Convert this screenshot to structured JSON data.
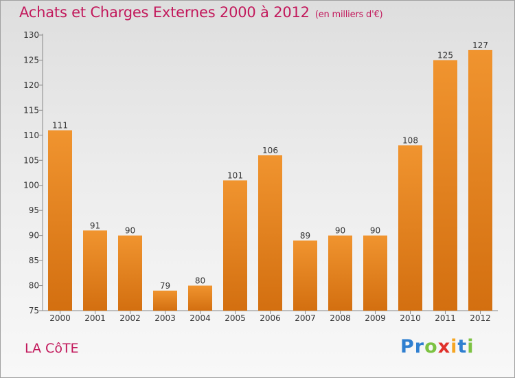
{
  "chart_data": {
    "type": "bar",
    "title": "Achats et Charges Externes 2000 à 2012",
    "subtitle": "(en milliers d'€)",
    "categories": [
      "2000",
      "2001",
      "2002",
      "2003",
      "2004",
      "2005",
      "2006",
      "2007",
      "2008",
      "2009",
      "2010",
      "2011",
      "2012"
    ],
    "values": [
      111,
      91,
      90,
      79,
      80,
      101,
      106,
      89,
      90,
      90,
      108,
      125,
      127
    ],
    "ylim": [
      75,
      130
    ],
    "yticks": [
      75,
      80,
      85,
      90,
      95,
      100,
      105,
      110,
      115,
      120,
      125,
      130
    ],
    "grid": false,
    "bar_color": "#f0942f",
    "bar_color_dark": "#d36f10"
  },
  "commune": "LA CôTE",
  "brand": {
    "letters": [
      "P",
      "r",
      "o",
      "x",
      "i",
      "t",
      "i"
    ],
    "colors": [
      "#2f7fd0",
      "#2f7fd0",
      "#7cc242",
      "#e0312b",
      "#f5a623",
      "#2f7fd0",
      "#7cc242"
    ]
  }
}
